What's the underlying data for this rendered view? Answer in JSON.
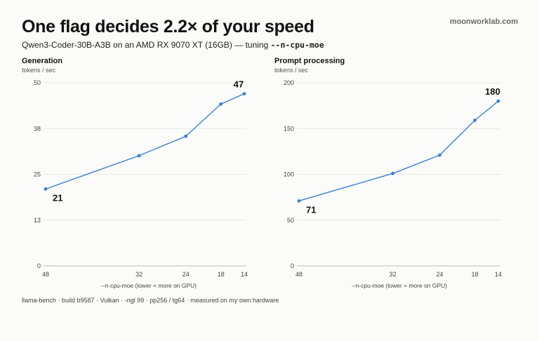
{
  "header": {
    "title": "One flag decides 2.2× of your speed",
    "brand": "moonworklab.com",
    "subtitle_prefix": "Qwen3-Coder-30B-A3B on an AMD RX 9070 XT (16GB) — tuning ",
    "subtitle_flag": "--n-cpu-moe"
  },
  "footer": "llama-bench · build b9587 · Vulkan · -ngl 99 · pp256 / tg64 · measured on my own hardware",
  "colors": {
    "line": "#3a7fd5",
    "grid": "#e8e8e4",
    "axis": "#bdbdb8"
  },
  "chart_data": [
    {
      "type": "line",
      "title": "Generation",
      "ylabel": "tokens / sec",
      "xlabel": "--n-cpu-moe (lower = more on GPU)",
      "x": [
        48,
        32,
        24,
        18,
        14
      ],
      "x_reversed": true,
      "xlim": [
        48,
        14
      ],
      "ylim": [
        0,
        50
      ],
      "yticks": [
        "0",
        "13",
        "25",
        "38",
        "50"
      ],
      "series": [
        {
          "values": [
            21,
            30.1,
            35.4,
            44.2,
            47
          ]
        }
      ],
      "data_labels": [
        {
          "index": 0,
          "text": "21"
        },
        {
          "index": 4,
          "text": "47"
        }
      ],
      "grid": true
    },
    {
      "type": "line",
      "title": "Prompt processing",
      "ylabel": "tokens / sec",
      "xlabel": "--n-cpu-moe (lower = more on GPU)",
      "x": [
        48,
        32,
        24,
        18,
        14
      ],
      "x_reversed": true,
      "xlim": [
        48,
        14
      ],
      "ylim": [
        0,
        200
      ],
      "yticks": [
        "0",
        "50",
        "100",
        "150",
        "200"
      ],
      "series": [
        {
          "values": [
            71,
            101,
            121,
            159,
            180
          ]
        }
      ],
      "data_labels": [
        {
          "index": 0,
          "text": "71"
        },
        {
          "index": 4,
          "text": "180"
        }
      ],
      "grid": true
    }
  ]
}
